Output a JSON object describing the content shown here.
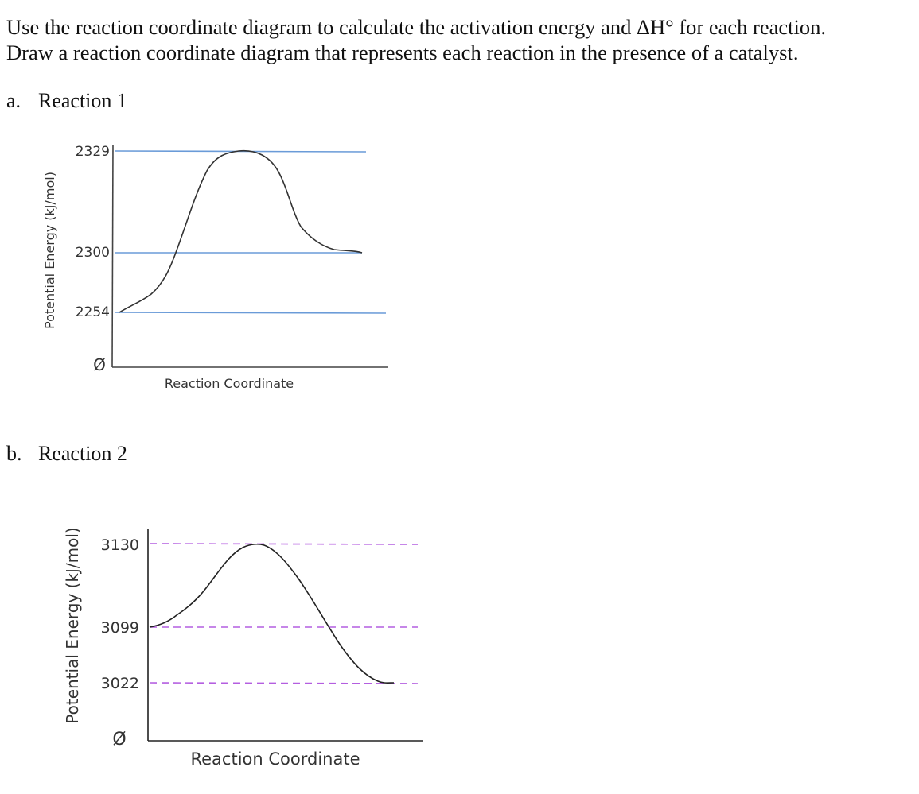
{
  "instructions": {
    "line1": "Use the reaction coordinate diagram to calculate the activation energy and ΔH° for each reaction.",
    "line2": "Draw a reaction coordinate diagram that represents each reaction in the presence of a catalyst."
  },
  "part_a": {
    "marker": "a.",
    "title": "Reaction 1"
  },
  "part_b": {
    "marker": "b.",
    "title": "Reaction 2"
  },
  "chart_data": [
    {
      "type": "line",
      "ylabel": "Potential Energy (kJ/mol)",
      "xlabel": "Reaction Coordinate",
      "y_origin_label": "Ø",
      "levels": [
        "2329",
        "2300",
        "2254"
      ],
      "level_values": [
        2329,
        2300,
        2254
      ],
      "reactant_energy": 2254,
      "transition_state_energy": 2329,
      "product_energy": 2300,
      "reference_line_color": "#6a9bd8",
      "reference_line_style": "solid"
    },
    {
      "type": "line",
      "ylabel": "Potential Energy (kJ/mol)",
      "xlabel": "Reaction Coordinate",
      "y_origin_label": "Ø",
      "levels": [
        "3130",
        "3099",
        "3022"
      ],
      "level_values": [
        3130,
        3099,
        3022
      ],
      "reactant_energy": 3099,
      "transition_state_energy": 3130,
      "product_energy": 3022,
      "reference_line_color": "#b45ee0",
      "reference_line_style": "dashed"
    }
  ]
}
